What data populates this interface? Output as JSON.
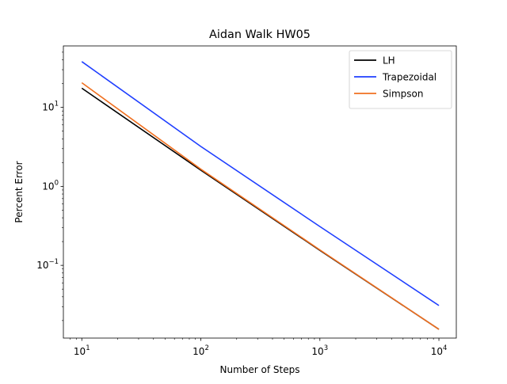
{
  "chart_data": {
    "type": "line",
    "title": "Aidan Walk HW05",
    "xlabel": "Number of Steps",
    "ylabel": "Percent Error",
    "xscale": "log",
    "yscale": "log",
    "xlim": [
      7,
      14000
    ],
    "ylim": [
      0.012,
      60
    ],
    "x_ticks": [
      {
        "value": 10,
        "base": "10",
        "exp": "1"
      },
      {
        "value": 100,
        "base": "10",
        "exp": "2"
      },
      {
        "value": 1000,
        "base": "10",
        "exp": "3"
      },
      {
        "value": 10000,
        "base": "10",
        "exp": "4"
      }
    ],
    "y_ticks": [
      {
        "value": 0.1,
        "base": "10",
        "exp": "−1"
      },
      {
        "value": 1,
        "base": "10",
        "exp": "0"
      },
      {
        "value": 10,
        "base": "10",
        "exp": "1"
      }
    ],
    "legend_position": "top-right",
    "grid": false,
    "x": [
      10,
      100,
      1000,
      10000
    ],
    "series": [
      {
        "name": "LH",
        "color": "#000000",
        "values": [
          17.5,
          1.6,
          0.155,
          0.0155
        ]
      },
      {
        "name": "Trapezoidal",
        "color": "#1f3fff",
        "values": [
          38,
          3.2,
          0.31,
          0.031
        ]
      },
      {
        "name": "Simpson",
        "color": "#f07020",
        "values": [
          20.5,
          1.65,
          0.157,
          0.0155
        ]
      }
    ]
  }
}
